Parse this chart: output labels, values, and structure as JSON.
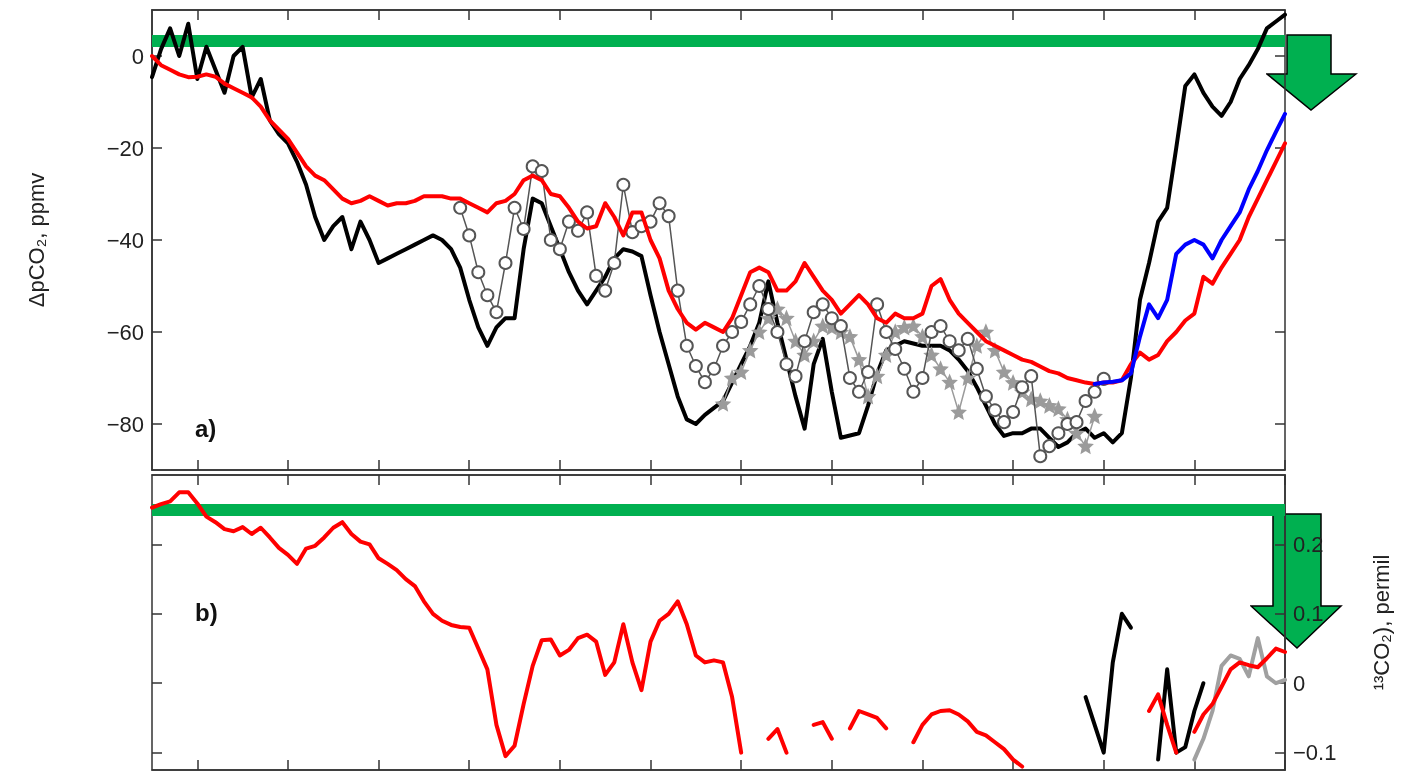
{
  "chart_data": [
    {
      "type": "line",
      "ylabel": "ΔpCO₂, ppmv",
      "annotations": [
        "a)"
      ],
      "tick_labels": "y",
      "categories": [
        null,
        null,
        null,
        null,
        null,
        null,
        null,
        null,
        null,
        null,
        null,
        null,
        null,
        null,
        null,
        null,
        null,
        null,
        null,
        null,
        null,
        null,
        null,
        null,
        null,
        null,
        null,
        null,
        null,
        null,
        null,
        null,
        null,
        null,
        null,
        null,
        null,
        null,
        null,
        null,
        null,
        null,
        null,
        null,
        null,
        null,
        null,
        null,
        null,
        null,
        null,
        null,
        null,
        null,
        null,
        null,
        null,
        null,
        null,
        null,
        null,
        null,
        null,
        null,
        null,
        null,
        null,
        null,
        null,
        null,
        null,
        null,
        null,
        null,
        null,
        null,
        null,
        null,
        null,
        null,
        null,
        null,
        null,
        null,
        null,
        null,
        null,
        null,
        null,
        null,
        null,
        null,
        null,
        null,
        null,
        null,
        null,
        null,
        null,
        null,
        null,
        null,
        null,
        null,
        null,
        null,
        null,
        null,
        null,
        null,
        null,
        null,
        null,
        null,
        null,
        null,
        null,
        null,
        null,
        null,
        null,
        null,
        null,
        null,
        null,
        null
      ],
      "ylim": [
        -90,
        10
      ],
      "yticks": [
        {
          "value": -80,
          "label": "−80"
        },
        {
          "value": -60,
          "label": "−60"
        },
        {
          "value": -40,
          "label": "−40"
        },
        {
          "value": -20,
          "label": "−20"
        },
        0
      ],
      "ref_lines": [
        {
          "axis": "y",
          "value": 3.3,
          "color": "#00b050"
        }
      ],
      "series": [
        {
          "color": "#000000",
          "marker": "none",
          "values": [
            -4.6,
            1.5,
            6,
            0,
            7,
            -5,
            2,
            -3,
            -8,
            0,
            2,
            -9,
            -5,
            -14,
            -17,
            -19,
            -23,
            -28,
            -35,
            -40,
            -37,
            -35,
            -42,
            -36,
            -40,
            -45,
            -44,
            -43,
            -42,
            -41,
            -40,
            -39,
            -40,
            -42,
            -46,
            -53,
            -59,
            -63,
            -59,
            -57,
            -57,
            -42,
            -31,
            -32,
            -37,
            -42,
            -47,
            -51,
            -54,
            -51,
            -48,
            -44,
            -42,
            -42.5,
            -43.5,
            -52,
            -60,
            -67,
            -74,
            -79,
            -80,
            -78,
            -76.5,
            -75,
            -71,
            -67,
            -63,
            -58,
            -49,
            -58,
            -66,
            -74,
            -81,
            -67,
            -61.5,
            -73,
            -83,
            -82.5,
            -82,
            -76,
            -69,
            -64,
            -63,
            -62,
            -62.5,
            -63,
            -63,
            -63,
            -64,
            -66,
            -68.5,
            -72,
            -76,
            -80,
            -82.6,
            -82,
            -82,
            -81,
            -81,
            -83,
            -85,
            -84,
            -82,
            -81,
            -83,
            -82,
            -84,
            -82,
            -70,
            -53,
            -45,
            -36,
            -33,
            -20,
            -6.5,
            -4,
            -8,
            -11,
            -13,
            -10,
            -5,
            -2,
            1.5,
            6,
            7.5,
            9
          ]
        },
        {
          "color": "#9b9b9b",
          "marker": "star",
          "values": [
            null,
            null,
            null,
            null,
            null,
            null,
            null,
            null,
            null,
            null,
            null,
            null,
            null,
            null,
            null,
            null,
            null,
            null,
            null,
            null,
            null,
            null,
            null,
            null,
            null,
            null,
            null,
            null,
            null,
            null,
            null,
            null,
            null,
            null,
            null,
            null,
            null,
            null,
            null,
            null,
            null,
            null,
            null,
            null,
            null,
            null,
            null,
            null,
            null,
            null,
            null,
            null,
            null,
            null,
            null,
            null,
            null,
            null,
            null,
            null,
            null,
            null,
            null,
            -75.6,
            -70,
            -68.7,
            -64,
            -60,
            -57,
            -55,
            -57,
            -62,
            -65,
            -62,
            -58.7,
            -59,
            -60,
            -61,
            -66,
            -74,
            -69.6,
            -65,
            -60,
            -59,
            -58.7,
            -61,
            -65,
            -68,
            -70.9,
            -77.4,
            -70,
            -63,
            -60,
            -64,
            -68.7,
            -71,
            -73,
            -74.6,
            -75,
            -76,
            -76.7,
            -79,
            -82,
            -84.8,
            -78.3,
            null,
            null,
            null,
            null,
            null,
            null,
            null,
            null,
            null,
            null,
            null,
            null,
            null,
            null,
            null,
            null,
            null,
            null,
            null,
            null,
            null
          ]
        },
        {
          "color": "#555555",
          "marker": "circle",
          "values": [
            null,
            null,
            null,
            null,
            null,
            null,
            null,
            null,
            null,
            null,
            null,
            null,
            null,
            null,
            null,
            null,
            null,
            null,
            null,
            null,
            null,
            null,
            null,
            null,
            null,
            null,
            null,
            null,
            null,
            null,
            null,
            null,
            null,
            null,
            -33,
            -39,
            -47,
            -52,
            -55.7,
            -45,
            -33,
            -37.6,
            -24,
            -25,
            -40,
            -42,
            -36,
            -38,
            -34,
            -47.8,
            -51,
            -45,
            -28,
            -38.3,
            -37,
            -36,
            -32,
            -34.8,
            -51,
            -63,
            -67.4,
            -70.9,
            -68,
            -63,
            -60,
            -57.8,
            -54,
            -50,
            -55,
            -60,
            -67,
            -69.6,
            -62,
            -55.7,
            -54,
            -57,
            -58.7,
            -70,
            -73,
            -68.7,
            -54,
            -60,
            -63.7,
            -68,
            -73,
            -70,
            -60,
            -58.7,
            -62,
            -64,
            -61.5,
            -68,
            -74,
            -77,
            -79.6,
            -77.4,
            -72,
            -69.6,
            -87,
            -84.8,
            -82,
            -80,
            -79.6,
            -75,
            -73,
            -70.2,
            null,
            null,
            null,
            null,
            null,
            null,
            null,
            null,
            null,
            null,
            null,
            null,
            null,
            null,
            null,
            null,
            null,
            null,
            null,
            null
          ]
        },
        {
          "color": "#ff0000",
          "marker": "none",
          "values": [
            0,
            -2,
            -3,
            -4,
            -4.6,
            -4.5,
            -4,
            -4.5,
            -6,
            -7,
            -8,
            -9,
            -11,
            -14,
            -16,
            -18,
            -21,
            -24,
            -26,
            -27,
            -29,
            -31,
            -32,
            -31.5,
            -30.5,
            -31.5,
            -32.5,
            -32,
            -32,
            -31.5,
            -30.5,
            -30.5,
            -30.5,
            -31,
            -31,
            -32,
            -33,
            -34,
            -32,
            -31.5,
            -30,
            -27,
            -26,
            -27,
            -30,
            -30.5,
            -33,
            -36,
            -37.5,
            -37,
            -32,
            -35,
            -39,
            -34,
            -34,
            -40,
            -44,
            -51,
            -55,
            -58,
            -59.5,
            -58,
            -59,
            -60,
            -57,
            -52,
            -47,
            -46,
            -47,
            -51,
            -51,
            -49,
            -45,
            -48,
            -51,
            -53,
            -56,
            -54,
            -52,
            -54,
            -57,
            -58,
            -56,
            -57,
            -57,
            -56,
            -50,
            -48.5,
            -53,
            -56,
            -58,
            -60,
            -62,
            -63,
            -64,
            -65,
            -66,
            -66.5,
            -67.5,
            -68.5,
            -69,
            -70,
            -70.5,
            -71,
            -71.3,
            -71,
            -71,
            -70.5,
            -67,
            -64.5,
            -66,
            -65,
            -62,
            -60,
            -57.5,
            -56,
            -48,
            -49.5,
            -46,
            -43,
            -40,
            -35,
            -31,
            -27,
            -23,
            -19
          ]
        },
        {
          "color": "#0000ff",
          "marker": "none",
          "values": [
            null,
            null,
            null,
            null,
            null,
            null,
            null,
            null,
            null,
            null,
            null,
            null,
            null,
            null,
            null,
            null,
            null,
            null,
            null,
            null,
            null,
            null,
            null,
            null,
            null,
            null,
            null,
            null,
            null,
            null,
            null,
            null,
            null,
            null,
            null,
            null,
            null,
            null,
            null,
            null,
            null,
            null,
            null,
            null,
            null,
            null,
            null,
            null,
            null,
            null,
            null,
            null,
            null,
            null,
            null,
            null,
            null,
            null,
            null,
            null,
            null,
            null,
            null,
            null,
            null,
            null,
            null,
            null,
            null,
            null,
            null,
            null,
            null,
            null,
            null,
            null,
            null,
            null,
            null,
            null,
            null,
            null,
            null,
            null,
            null,
            null,
            null,
            null,
            null,
            null,
            null,
            null,
            null,
            null,
            null,
            null,
            null,
            null,
            null,
            null,
            null,
            null,
            null,
            null,
            -71.3,
            -71,
            -70.8,
            -70.5,
            -69,
            -61,
            -54,
            -57,
            -53,
            -43,
            -41,
            -40,
            -41,
            -44,
            -40,
            -37,
            -34,
            -29,
            -25,
            -20.5,
            -16.5,
            -12.6
          ]
        }
      ]
    },
    {
      "type": "line",
      "ylabel": "¹³CO₂), permil",
      "annotations": [
        "b)"
      ],
      "tick_labels": "y",
      "categories": [
        null,
        null,
        null,
        null,
        null,
        null,
        null,
        null,
        null,
        null,
        null,
        null,
        null,
        null,
        null,
        null,
        null,
        null,
        null,
        null,
        null,
        null,
        null,
        null,
        null,
        null,
        null,
        null,
        null,
        null,
        null,
        null,
        null,
        null,
        null,
        null,
        null,
        null,
        null,
        null,
        null,
        null,
        null,
        null,
        null,
        null,
        null,
        null,
        null,
        null,
        null,
        null,
        null,
        null,
        null,
        null,
        null,
        null,
        null,
        null,
        null,
        null,
        null,
        null,
        null,
        null,
        null,
        null,
        null,
        null,
        null,
        null,
        null,
        null,
        null,
        null,
        null,
        null,
        null,
        null,
        null,
        null,
        null,
        null,
        null,
        null,
        null,
        null,
        null,
        null,
        null,
        null,
        null,
        null,
        null,
        null,
        null,
        null,
        null,
        null,
        null,
        null,
        null,
        null,
        null,
        null,
        null,
        null,
        null,
        null,
        null,
        null,
        null,
        null,
        null,
        null,
        null,
        null,
        null,
        null,
        null,
        null,
        null,
        null,
        null,
        null
      ],
      "ylim": [
        -0.125,
        0.3
      ],
      "yticks": [
        {
          "value": -0.1,
          "label": "−0.1"
        },
        0,
        0.1,
        0.2
      ],
      "ref_lines": [
        {
          "axis": "y",
          "value": 0.25,
          "color": "#00b050"
        }
      ],
      "series": [
        {
          "color": "#000000",
          "marker": "none",
          "values": [
            null,
            null,
            null,
            null,
            null,
            null,
            null,
            null,
            null,
            null,
            null,
            null,
            null,
            null,
            null,
            null,
            null,
            null,
            null,
            null,
            null,
            null,
            null,
            null,
            null,
            null,
            null,
            null,
            null,
            null,
            null,
            null,
            null,
            null,
            null,
            null,
            null,
            null,
            null,
            null,
            null,
            null,
            null,
            null,
            null,
            null,
            null,
            null,
            null,
            null,
            null,
            null,
            null,
            null,
            null,
            null,
            null,
            null,
            null,
            null,
            null,
            null,
            null,
            null,
            null,
            null,
            null,
            null,
            null,
            null,
            null,
            null,
            null,
            null,
            null,
            null,
            null,
            null,
            null,
            null,
            null,
            null,
            null,
            null,
            null,
            null,
            null,
            null,
            null,
            null,
            null,
            null,
            null,
            null,
            null,
            null,
            null,
            null,
            null,
            null,
            null,
            null,
            null,
            -0.02,
            -0.06,
            -0.1,
            0.03,
            0.1,
            0.08,
            null,
            null,
            -0.11,
            0.02,
            -0.1,
            -0.092,
            -0.04,
            0.0,
            null,
            null,
            null,
            null,
            null,
            null,
            null,
            null,
            null
          ]
        },
        {
          "color": "#a0a0a0",
          "marker": "none",
          "values": [
            null,
            null,
            null,
            null,
            null,
            null,
            null,
            null,
            null,
            null,
            null,
            null,
            null,
            null,
            null,
            null,
            null,
            null,
            null,
            null,
            null,
            null,
            null,
            null,
            null,
            null,
            null,
            null,
            null,
            null,
            null,
            null,
            null,
            null,
            null,
            null,
            null,
            null,
            null,
            null,
            null,
            null,
            null,
            null,
            null,
            null,
            null,
            null,
            null,
            null,
            null,
            null,
            null,
            null,
            null,
            null,
            null,
            null,
            null,
            null,
            null,
            null,
            null,
            null,
            null,
            null,
            null,
            null,
            null,
            null,
            null,
            null,
            null,
            null,
            null,
            null,
            null,
            null,
            null,
            null,
            null,
            null,
            null,
            null,
            null,
            null,
            null,
            null,
            null,
            null,
            null,
            null,
            null,
            null,
            null,
            null,
            null,
            null,
            null,
            null,
            null,
            null,
            null,
            null,
            null,
            null,
            null,
            null,
            null,
            null,
            null,
            null,
            null,
            null,
            null,
            -0.11,
            -0.08,
            -0.04,
            0.025,
            0.04,
            0.035,
            0.01,
            0.065,
            0.01,
            0.0,
            0.005
          ]
        },
        {
          "color": "#ff0000",
          "marker": "none",
          "values": [
            0.253,
            0.258,
            0.262,
            0.275,
            0.275,
            0.259,
            0.24,
            0.232,
            0.222,
            0.219,
            0.225,
            0.215,
            0.224,
            0.21,
            0.195,
            0.185,
            0.172,
            0.194,
            0.198,
            0.21,
            0.224,
            0.232,
            0.215,
            0.204,
            0.2,
            0.18,
            0.172,
            0.163,
            0.15,
            0.14,
            0.118,
            0.1,
            0.09,
            0.084,
            0.081,
            0.08,
            0.05,
            0.02,
            -0.06,
            -0.105,
            -0.09,
            -0.03,
            0.025,
            0.062,
            0.063,
            0.04,
            0.048,
            0.065,
            0.07,
            0.06,
            0.012,
            0.03,
            0.085,
            0.03,
            -0.01,
            0.06,
            0.09,
            0.1,
            0.118,
            0.085,
            0.04,
            0.03,
            0.033,
            0.03,
            -0.02,
            -0.1,
            null,
            null,
            -0.08,
            -0.066,
            -0.1,
            null,
            null,
            -0.06,
            -0.056,
            -0.08,
            null,
            -0.065,
            -0.04,
            -0.045,
            -0.05,
            -0.065,
            null,
            null,
            -0.085,
            -0.06,
            -0.045,
            -0.04,
            -0.039,
            -0.045,
            -0.055,
            -0.07,
            -0.075,
            -0.085,
            -0.095,
            -0.11,
            -0.12,
            null,
            null,
            null,
            null,
            null,
            null,
            null,
            null,
            null,
            null,
            null,
            null,
            null,
            -0.04,
            -0.016,
            -0.06,
            -0.1,
            null,
            -0.07,
            -0.045,
            -0.03,
            -0.005,
            0.02,
            0.03,
            0.026,
            0.023,
            0.036,
            0.05,
            0.045
          ]
        }
      ]
    }
  ]
}
